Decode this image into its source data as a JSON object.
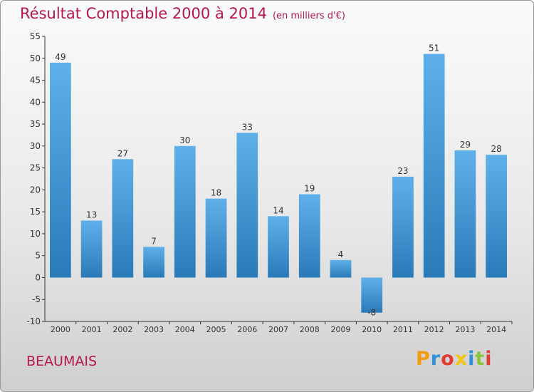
{
  "header": {
    "title": "Résultat Comptable 2000 à 2014",
    "subtitle": "(en milliers d'€)"
  },
  "footer": {
    "commune": "BEAUMAIS",
    "logo_text": "Proxiti"
  },
  "colors": {
    "title": "#b5164f",
    "bar_top": "#5fb0ea",
    "bar_bottom": "#2a7ab8",
    "logo_letters": [
      "#f39c12",
      "#2f8fd8",
      "#e03c31",
      "#f3c613",
      "#2f8fd8",
      "#8cc63f",
      "#e03c31"
    ]
  },
  "chart_data": {
    "type": "bar",
    "title": "Résultat Comptable 2000 à 2014",
    "subtitle": "(en milliers d'€)",
    "xlabel": "",
    "ylabel": "",
    "categories": [
      "2000",
      "2001",
      "2002",
      "2003",
      "2004",
      "2005",
      "2006",
      "2007",
      "2008",
      "2009",
      "2010",
      "2011",
      "2012",
      "2013",
      "2014"
    ],
    "values": [
      49,
      13,
      27,
      7,
      30,
      18,
      33,
      14,
      19,
      4,
      -8,
      23,
      51,
      29,
      28
    ],
    "ylim": [
      -10,
      55
    ],
    "yticks": [
      -10,
      -5,
      0,
      5,
      10,
      15,
      20,
      25,
      30,
      35,
      40,
      45,
      50,
      55
    ],
    "grid": false,
    "legend": "none"
  }
}
